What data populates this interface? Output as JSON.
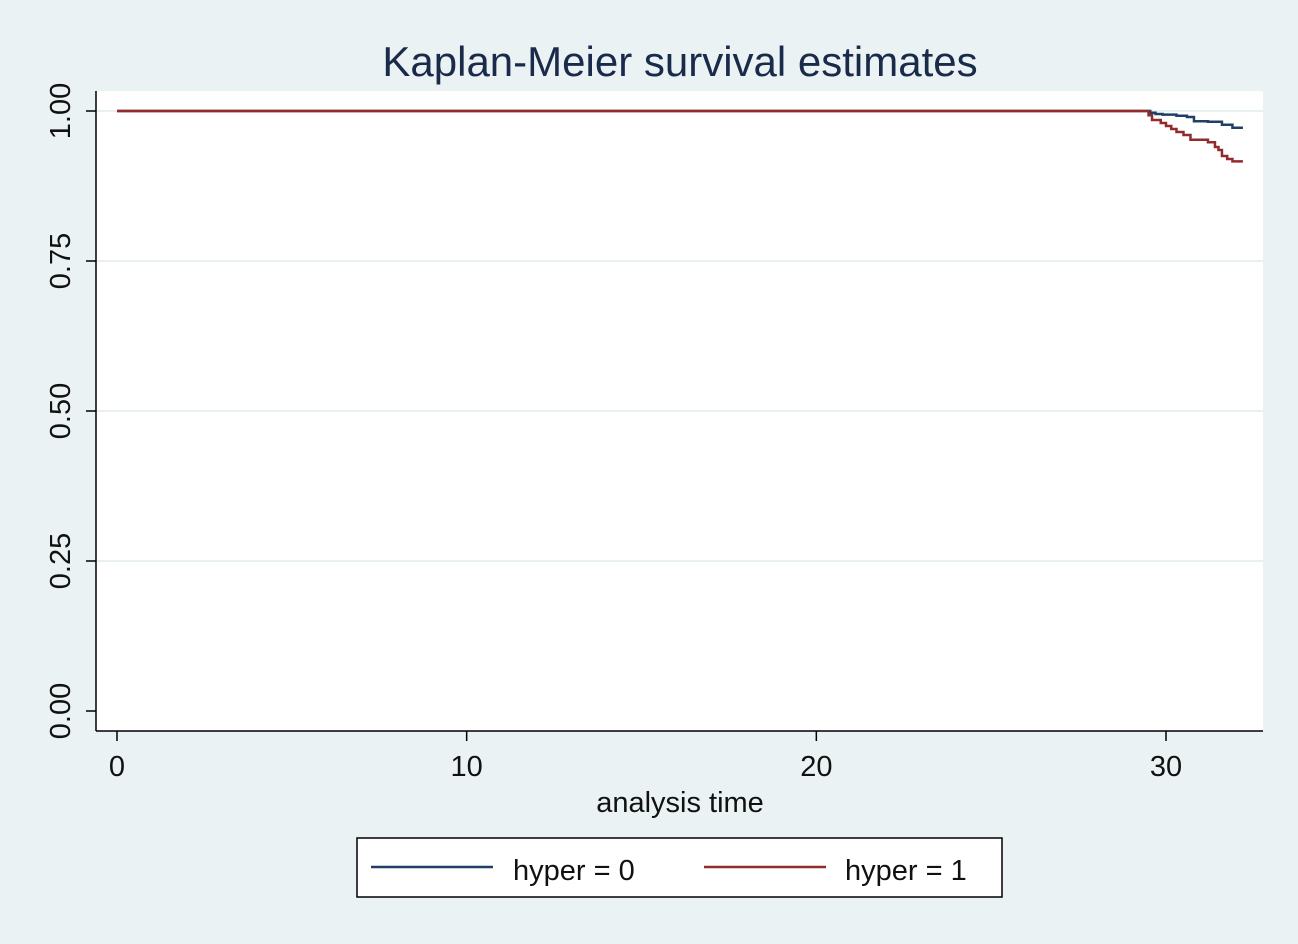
{
  "chart_data": {
    "type": "line",
    "title": "Kaplan-Meier survival estimates",
    "xlabel": "analysis time",
    "ylabel": "",
    "xlim": [
      0,
      32.2
    ],
    "ylim": [
      0,
      1
    ],
    "xticks": [
      0,
      10,
      20,
      30
    ],
    "xtick_labels": [
      "0",
      "10",
      "20",
      "30"
    ],
    "yticks": [
      0,
      0.25,
      0.5,
      0.75,
      1
    ],
    "ytick_labels": [
      "0.00",
      "0.25",
      "0.50",
      "0.75",
      "1.00"
    ],
    "grid": true,
    "legend_position": "bottom",
    "series": [
      {
        "name": "hyper = 0",
        "color": "#1f3f66",
        "step": true,
        "x": [
          0,
          29.4,
          29.55,
          29.7,
          29.9,
          30.3,
          30.6,
          30.8,
          31.2,
          31.6,
          31.9,
          32.2
        ],
        "y": [
          1.0,
          1.0,
          0.997,
          0.995,
          0.994,
          0.992,
          0.99,
          0.983,
          0.982,
          0.977,
          0.972,
          0.972
        ]
      },
      {
        "name": "hyper = 1",
        "color": "#922b2b",
        "step": true,
        "x": [
          0,
          29.4,
          29.5,
          29.6,
          29.85,
          30.0,
          30.15,
          30.3,
          30.5,
          30.7,
          31.2,
          31.4,
          31.5,
          31.6,
          31.75,
          31.9,
          32.2
        ],
        "y": [
          1.0,
          1.0,
          0.993,
          0.985,
          0.98,
          0.975,
          0.97,
          0.965,
          0.96,
          0.952,
          0.948,
          0.94,
          0.935,
          0.925,
          0.92,
          0.916,
          0.916
        ]
      }
    ],
    "colors": {
      "background": "#eaf2f3",
      "plot_region": "#ffffff",
      "grid": "#e8f0f1",
      "title": "#1a2a4a"
    }
  }
}
